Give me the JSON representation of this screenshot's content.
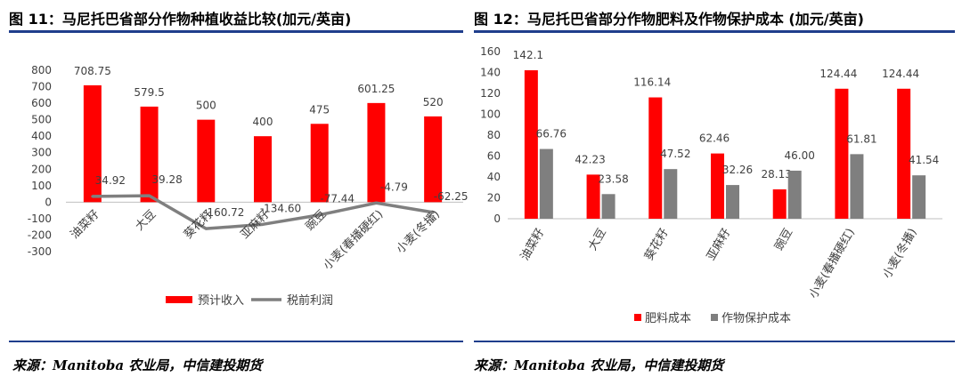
{
  "fig11": {
    "title": "图 11：马尼托巴省部分作物种植收益比较(加元/英亩)",
    "source": "来源：Manitoba 农业局，中信建投期货"
  },
  "fig12": {
    "title": "图 12：马尼托巴省部分作物肥料及作物保护成本 (加元/英亩)",
    "source": "来源：Manitoba 农业局，中信建投期货"
  },
  "colors": {
    "red": "#ff0000",
    "gray": "#7f7f7f",
    "rule": "#1f3e8c"
  },
  "chart_data": [
    {
      "type": "bar",
      "categories": [
        "油菜籽",
        "大豆",
        "葵花籽",
        "亚麻籽",
        "豌豆",
        "小麦(春播硬红)",
        "小麦(冬播)"
      ],
      "series": [
        {
          "name": "预计收入",
          "chart": "bar",
          "values": [
            708.75,
            579.5,
            500,
            400,
            475,
            601.25,
            520
          ],
          "labels": [
            "708.75",
            "579.5",
            "500",
            "400",
            "475",
            "601.25",
            "520"
          ]
        },
        {
          "name": "税前利润",
          "chart": "line",
          "values": [
            34.92,
            39.28,
            -160.72,
            -134.6,
            -77.44,
            -4.79,
            -62.25
          ],
          "labels": [
            "34.92",
            "39.28",
            "-160.72",
            "-134.60",
            "-77.44",
            "-4.79",
            "-62.25"
          ]
        }
      ],
      "ylim": [
        -300,
        800
      ],
      "yticks": [
        "800",
        "700",
        "600",
        "500",
        "400",
        "300",
        "200",
        "100",
        "0",
        "-100",
        "-200",
        "-300"
      ],
      "legend": "bottom",
      "grid": false
    },
    {
      "type": "bar",
      "categories": [
        "油菜籽",
        "大豆",
        "葵花籽",
        "亚麻籽",
        "豌豆",
        "小麦(春播硬红)",
        "小麦(冬播)"
      ],
      "series": [
        {
          "name": "肥料成本",
          "values": [
            142.1,
            42.23,
            116.14,
            62.46,
            28.13,
            124.44,
            124.44
          ],
          "labels": [
            "142.1",
            "42.23",
            "116.14",
            "62.46",
            "28.13",
            "124.44",
            "124.44"
          ]
        },
        {
          "name": "作物保护成本",
          "values": [
            66.76,
            23.58,
            47.52,
            32.26,
            46.0,
            61.81,
            41.54
          ],
          "labels": [
            "66.76",
            "23.58",
            "47.52",
            "32.26",
            "46.00",
            "61.81",
            "41.54"
          ]
        }
      ],
      "ylim": [
        0,
        160
      ],
      "yticks": [
        "160",
        "140",
        "120",
        "100",
        "80",
        "60",
        "40",
        "20",
        "0"
      ],
      "legend": "bottom",
      "grid": false
    }
  ]
}
